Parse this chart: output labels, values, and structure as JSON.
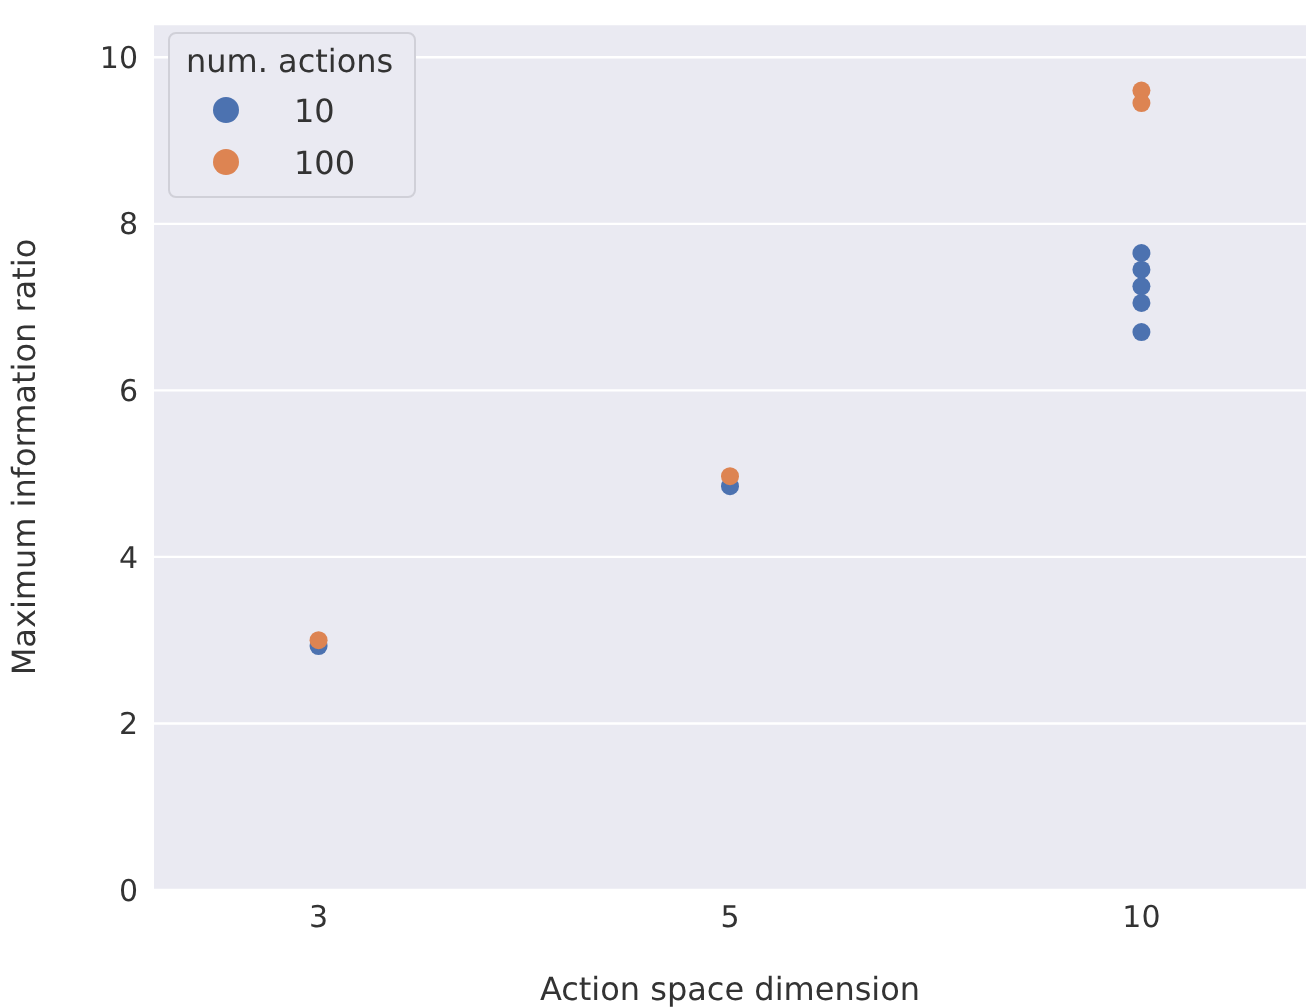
{
  "chart_data": {
    "type": "scatter",
    "xlabel": "Action space dimension",
    "ylabel": "Maximum information ratio",
    "legend_title": "num. actions",
    "legend": "top left",
    "grid": "y",
    "marker": "circle",
    "categories": [
      "3",
      "5",
      "10"
    ],
    "ylim": [
      0,
      10.4
    ],
    "yticks": [
      0,
      2,
      4,
      6,
      8,
      10
    ],
    "series": [
      {
        "name": "10",
        "color": "#4c72b0",
        "x": [
          "3",
          "5",
          "10",
          "10",
          "10",
          "10",
          "10"
        ],
        "values": [
          2.93,
          4.85,
          7.65,
          7.45,
          7.25,
          7.05,
          6.7
        ]
      },
      {
        "name": "100",
        "color": "#dd8452",
        "x": [
          "3",
          "5",
          "10",
          "10"
        ],
        "values": [
          3.0,
          4.97,
          9.6,
          9.45
        ]
      }
    ]
  }
}
